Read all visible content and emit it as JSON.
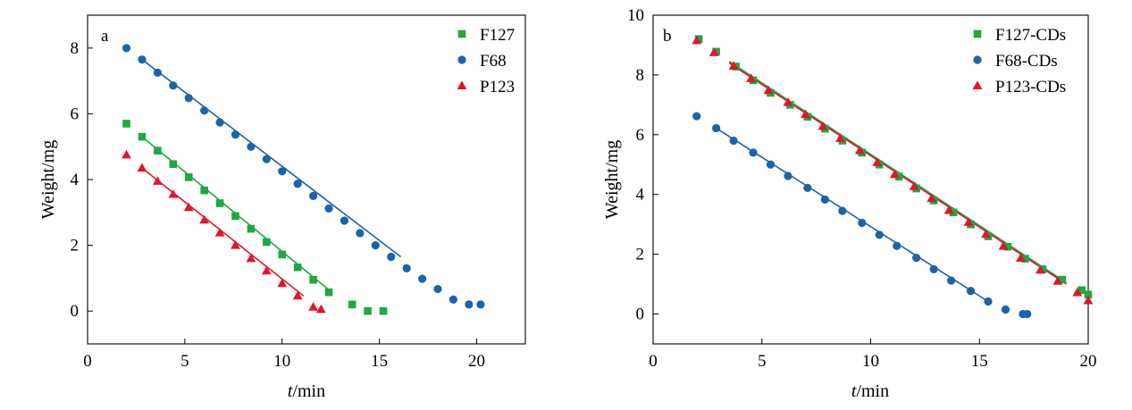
{
  "chart_data": [
    {
      "panel": "a",
      "type": "scatter",
      "xlabel_italic": "t",
      "xlabel_rest": "/min",
      "ylabel": "Weight/mg",
      "xlim": [
        0,
        22.5
      ],
      "ylim": [
        -1,
        9
      ],
      "xticks": [
        0,
        5,
        10,
        15,
        20
      ],
      "yticks": [
        0,
        2,
        4,
        6,
        8
      ],
      "legend_position": "top-right",
      "series": [
        {
          "name": "F127",
          "marker": "square",
          "color": "#1fa844",
          "x": [
            2.0,
            2.8,
            3.6,
            4.4,
            5.2,
            6.0,
            6.8,
            7.6,
            8.4,
            9.2,
            10.0,
            10.8,
            11.6,
            12.4,
            13.6,
            14.4,
            15.2
          ],
          "y": [
            5.7,
            5.3,
            4.88,
            4.47,
            4.07,
            3.67,
            3.28,
            2.89,
            2.5,
            2.1,
            1.72,
            1.33,
            0.95,
            0.57,
            0.2,
            0.0,
            0.0
          ],
          "fit_x": [
            2.8,
            12.6
          ],
          "fit_y": [
            5.3,
            0.55
          ]
        },
        {
          "name": "F68",
          "marker": "circle",
          "color": "#1d63a8",
          "x": [
            2.0,
            2.8,
            3.6,
            4.4,
            5.2,
            6.0,
            6.8,
            7.6,
            8.4,
            9.2,
            10.0,
            10.8,
            11.6,
            12.4,
            13.2,
            14.0,
            14.8,
            15.6,
            16.4,
            17.2,
            18.0,
            18.8,
            19.6,
            20.2
          ],
          "y": [
            8.0,
            7.65,
            7.25,
            6.86,
            6.48,
            6.1,
            5.74,
            5.37,
            5.0,
            4.62,
            4.25,
            3.87,
            3.5,
            3.12,
            2.75,
            2.37,
            2.0,
            1.65,
            1.3,
            0.98,
            0.67,
            0.35,
            0.2,
            0.2
          ],
          "fit_x": [
            2.8,
            16.1
          ],
          "fit_y": [
            7.65,
            1.65
          ]
        },
        {
          "name": "P123",
          "marker": "triangle",
          "color": "#e0162b",
          "x": [
            2.0,
            2.8,
            3.6,
            4.4,
            5.2,
            6.0,
            6.8,
            7.6,
            8.4,
            9.2,
            10.0,
            10.8,
            11.6,
            12.0
          ],
          "y": [
            4.75,
            4.35,
            3.95,
            3.55,
            3.15,
            2.77,
            2.38,
            2.0,
            1.6,
            1.22,
            0.84,
            0.46,
            0.12,
            0.05
          ],
          "fit_x": [
            2.8,
            11.1
          ],
          "fit_y": [
            4.35,
            0.46
          ]
        }
      ]
    },
    {
      "panel": "b",
      "type": "scatter",
      "xlabel_italic": "t",
      "xlabel_rest": "/min",
      "ylabel": "Weight/mg",
      "xlim": [
        0,
        20
      ],
      "ylim": [
        -1,
        10
      ],
      "xticks": [
        0,
        5,
        10,
        15,
        20
      ],
      "yticks": [
        0,
        2,
        4,
        6,
        8,
        10
      ],
      "legend_position": "top-right",
      "series": [
        {
          "name": "F127-CDs",
          "marker": "square",
          "color": "#1fa844",
          "x": [
            2.1,
            2.9,
            3.8,
            4.6,
            5.4,
            6.3,
            7.1,
            7.9,
            8.7,
            9.6,
            10.4,
            11.3,
            12.1,
            12.9,
            13.8,
            14.6,
            15.4,
            16.3,
            17.1,
            17.9,
            18.8,
            19.7,
            20.0
          ],
          "y": [
            9.2,
            8.78,
            8.28,
            7.82,
            7.4,
            7.0,
            6.6,
            6.2,
            5.8,
            5.4,
            5.0,
            4.6,
            4.2,
            3.8,
            3.4,
            3.0,
            2.6,
            2.25,
            1.85,
            1.5,
            1.15,
            0.8,
            0.65
          ],
          "fit_x": [
            3.5,
            19.0
          ],
          "fit_y": [
            8.45,
            1.05
          ]
        },
        {
          "name": "F68-CDs",
          "marker": "circle",
          "color": "#1d63a8",
          "x": [
            2.0,
            2.9,
            3.7,
            4.6,
            5.4,
            6.2,
            7.1,
            7.9,
            8.7,
            9.6,
            10.4,
            11.2,
            12.1,
            12.9,
            13.7,
            14.6,
            15.4,
            16.2,
            17.0,
            17.2
          ],
          "y": [
            6.62,
            6.22,
            5.8,
            5.4,
            5.0,
            4.62,
            4.22,
            3.83,
            3.45,
            3.05,
            2.65,
            2.28,
            1.88,
            1.5,
            1.12,
            0.77,
            0.42,
            0.15,
            0.0,
            0.0
          ],
          "fit_x": [
            2.9,
            15.4
          ],
          "fit_y": [
            6.22,
            0.42
          ]
        },
        {
          "name": "P123-CDs",
          "marker": "triangle",
          "color": "#e0162b",
          "x": [
            2.0,
            2.8,
            3.7,
            4.5,
            5.3,
            6.2,
            7.0,
            7.8,
            8.6,
            9.5,
            10.3,
            11.1,
            12.0,
            12.8,
            13.6,
            14.5,
            15.3,
            16.1,
            16.9,
            17.8,
            18.6,
            19.5,
            20.0
          ],
          "y": [
            9.15,
            8.75,
            8.3,
            7.88,
            7.48,
            7.08,
            6.68,
            6.28,
            5.88,
            5.47,
            5.07,
            4.67,
            4.27,
            3.87,
            3.47,
            3.07,
            2.67,
            2.27,
            1.87,
            1.47,
            1.1,
            0.72,
            0.45
          ],
          "fit_x": [
            3.5,
            19.0
          ],
          "fit_y": [
            8.4,
            1.0
          ]
        }
      ]
    }
  ]
}
